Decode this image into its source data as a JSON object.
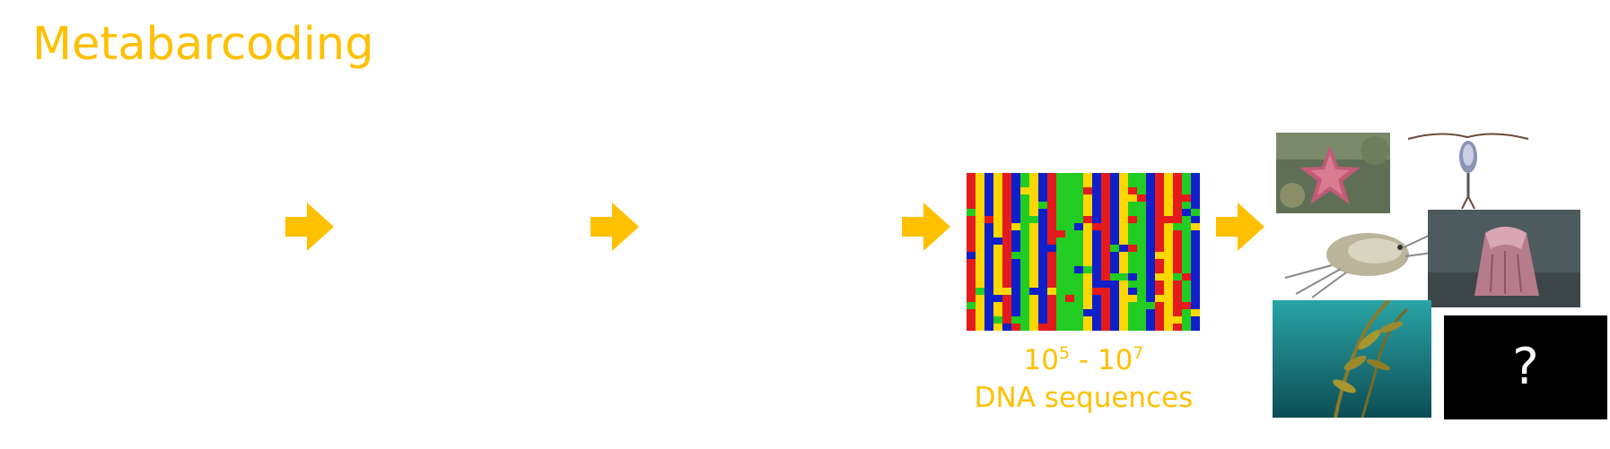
{
  "title": "Metabarcoding",
  "arrow_color": "#FFC000",
  "caption": {
    "base_1": "10",
    "exp_1": "5",
    "separator": " - ",
    "base_2": "10",
    "exp_2": "7",
    "line2": "DNA sequences"
  },
  "nucleotide_colors": {
    "A": "#E41A1C",
    "C": "#0F1FC9",
    "G": "#FFD700",
    "T": "#22CC22"
  },
  "images": [
    {
      "name": "starfish-photo"
    },
    {
      "name": "copepod-photo"
    },
    {
      "name": "amphipod-photo"
    },
    {
      "name": "barnacle-photo"
    },
    {
      "name": "kelp-forest-photo"
    }
  ],
  "unknown_label": "?"
}
